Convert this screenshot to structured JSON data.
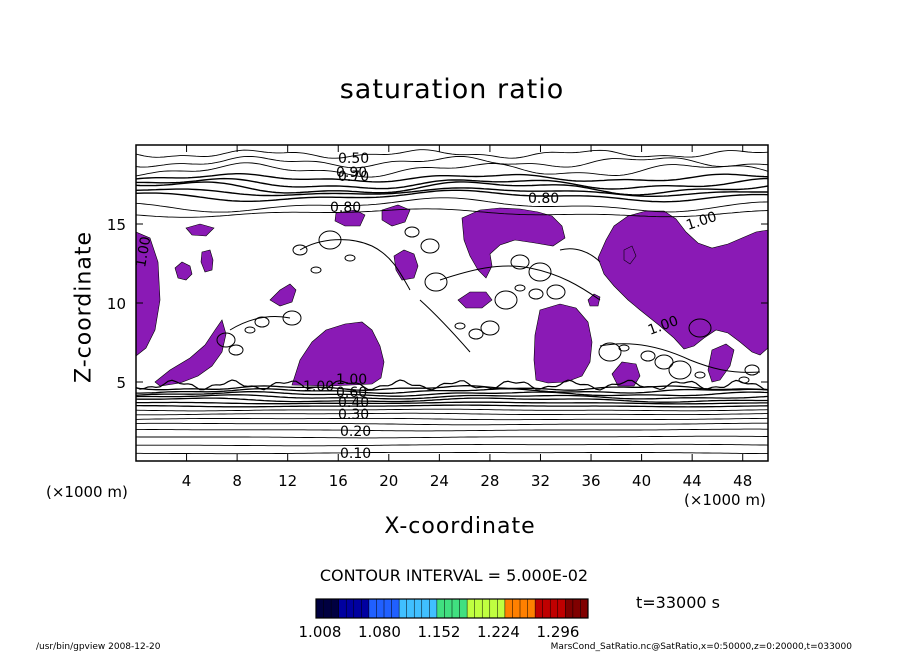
{
  "chart_data": {
    "type": "heatmap",
    "title": "saturation ratio",
    "xlabel": "X-coordinate",
    "ylabel": "Z-coordinate",
    "x_unit": "(×1000 m)",
    "y_unit": "(×1000 m)",
    "xlim": [
      0,
      50
    ],
    "ylim": [
      0,
      20
    ],
    "x_ticks": [
      "4",
      "8",
      "12",
      "16",
      "20",
      "24",
      "28",
      "32",
      "36",
      "40",
      "44",
      "48"
    ],
    "y_ticks": [
      "5",
      "10",
      "15"
    ],
    "contour_labels": [
      "0.50",
      "0.90",
      "0.70",
      "0.80",
      "0.80",
      "1.00",
      "1.00",
      "1.00",
      "1.00",
      "1.00",
      "0.90",
      "0.60",
      "0.40",
      "0.30",
      "0.20",
      "0.10"
    ],
    "contour_interval_text": "CONTOUR INTERVAL = 5.000E-02",
    "colorbar": {
      "tick_labels": [
        "1.008",
        "1.080",
        "1.152",
        "1.224",
        "1.296"
      ],
      "range": [
        1.008,
        1.296
      ],
      "colors": [
        "#000040",
        "#0000a0",
        "#2060ff",
        "#40c0ff",
        "#40e080",
        "#c0ff40",
        "#ff8000",
        "#c00000",
        "#800000"
      ]
    },
    "fill_color": "#8a1ab5",
    "time_label": "t=33000 s",
    "footer_left": "/usr/bin/gpview   2008-12-20",
    "footer_right": "MarsCond_SatRatio.nc@SatRatio,x=0:50000,z=0:20000,t=033000"
  }
}
